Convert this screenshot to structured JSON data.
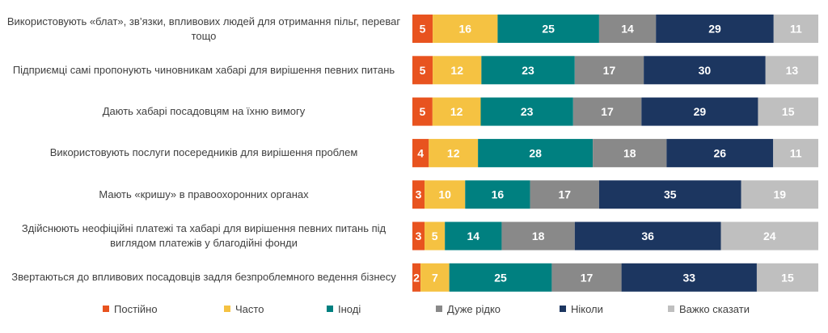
{
  "chart_data": {
    "type": "bar",
    "orientation": "horizontal",
    "stacked": "percent",
    "categories": [
      "Використовують «блат», зв’язки, впливових людей для отримання пільг, переваг тощо",
      "Підприємці самі пропонують чиновникам хабарі для вирішення певних питань",
      "Дають хабарі посадовцям на їхню вимогу",
      "Використовують послуги посередників для вирішення проблем",
      "Мають «кришу» в правоохоронних органах",
      "Здійснюють неофіційні платежі та хабарі для вирішення певних питань під виглядом платежів у благодійні фонди",
      "Звертаються до впливових посадовців задля безпроблемного ведення бізнесу"
    ],
    "series": [
      {
        "name": "Постійно",
        "color": "#E8531F",
        "values": [
          5,
          5,
          5,
          4,
          3,
          3,
          2
        ]
      },
      {
        "name": "Часто",
        "color": "#F5C242",
        "values": [
          16,
          12,
          12,
          12,
          10,
          5,
          7
        ]
      },
      {
        "name": "Іноді",
        "color": "#008080",
        "values": [
          25,
          23,
          23,
          28,
          16,
          14,
          25
        ]
      },
      {
        "name": "Дуже рідко",
        "color": "#898989",
        "values": [
          14,
          17,
          17,
          18,
          17,
          18,
          17
        ]
      },
      {
        "name": "Ніколи",
        "color": "#1C3660",
        "values": [
          29,
          30,
          29,
          26,
          35,
          36,
          33
        ]
      },
      {
        "name": "Важко сказати",
        "color": "#BFBFBF",
        "values": [
          11,
          13,
          15,
          11,
          19,
          24,
          15
        ]
      }
    ],
    "legend_position": "bottom",
    "grid": false,
    "data_labels": true
  }
}
